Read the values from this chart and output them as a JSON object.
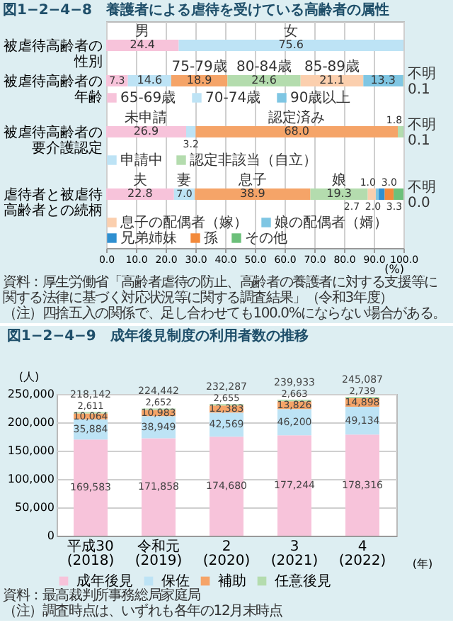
{
  "chart_data": [
    {
      "type": "bar",
      "orientation": "horizontal",
      "stacked": true,
      "title": "図1−2−4−8　養護者による虐待を受けている高齢者の属性",
      "xlabel": "(%)",
      "categories": [
        "被虐待高齢者の性別",
        "被虐待高齢者の年齢",
        "被虐待高齢者の要介護認定",
        "虐待者と被虐待高齢者との続柄"
      ],
      "xlim": [
        0,
        100
      ],
      "xticks": [
        {
          "value": 0,
          "label": "0.0"
        },
        {
          "value": 10,
          "label": "10.0"
        },
        {
          "value": 20,
          "label": "20.0"
        },
        {
          "value": 30,
          "label": "30.0"
        },
        {
          "value": 40,
          "label": "40.0"
        },
        {
          "value": 50,
          "label": "50.0"
        },
        {
          "value": 60,
          "label": "60.0"
        },
        {
          "value": 70,
          "label": "70.0"
        },
        {
          "value": 80,
          "label": "80.0"
        },
        {
          "value": 90,
          "label": "90.0"
        },
        {
          "value": 100,
          "label": "100.0"
        }
      ],
      "grid": "x",
      "legend": "left",
      "series": [
        {
          "name": "男",
          "color": "#f7c3da",
          "values": [
            24.4,
            null,
            null,
            null
          ],
          "value_labels": [
            "24.4",
            null,
            null,
            null
          ]
        },
        {
          "name": "女",
          "color": "#bde3f5",
          "values": [
            75.6,
            null,
            null,
            null
          ],
          "value_labels": [
            "75.6",
            null,
            null,
            null
          ]
        },
        {
          "name": "65-69歳",
          "color": "#f7c3da",
          "values": [
            null,
            7.3,
            null,
            null
          ],
          "value_labels": [
            null,
            "7.3",
            null,
            null
          ]
        },
        {
          "name": "70-74歳",
          "color": "#bde3f5",
          "values": [
            null,
            14.6,
            null,
            null
          ],
          "value_labels": [
            null,
            "14.6",
            null,
            null
          ]
        },
        {
          "name": "75-79歳",
          "color": "#f5a468",
          "values": [
            null,
            18.9,
            null,
            null
          ],
          "value_labels": [
            null,
            "18.9",
            null,
            null
          ]
        },
        {
          "name": "80-84歳",
          "color": "#b4dcae",
          "values": [
            null,
            24.6,
            null,
            null
          ],
          "value_labels": [
            null,
            "24.6",
            null,
            null
          ]
        },
        {
          "name": "85-89歳",
          "color": "#fbcfae",
          "values": [
            null,
            21.1,
            null,
            null
          ],
          "value_labels": [
            null,
            "21.1",
            null,
            null
          ]
        },
        {
          "name": "90歳以上",
          "color": "#7fc6e3",
          "values": [
            null,
            13.3,
            null,
            null
          ],
          "value_labels": [
            null,
            "13.3",
            null,
            null
          ]
        },
        {
          "name": "不明",
          "color": "#4fae6a",
          "values": [
            null,
            0.1,
            null,
            null
          ],
          "value_labels": [
            null,
            "0.1",
            null,
            null
          ]
        },
        {
          "name": "未申請",
          "color": "#f7c3da",
          "values": [
            null,
            null,
            26.9,
            null
          ],
          "value_labels": [
            null,
            null,
            "26.9",
            null
          ]
        },
        {
          "name": "申請中",
          "color": "#bde3f5",
          "values": [
            null,
            null,
            3.2,
            null
          ],
          "value_labels": [
            null,
            null,
            "3.2",
            null
          ]
        },
        {
          "name": "認定済み",
          "color": "#f5a468",
          "values": [
            null,
            null,
            68.0,
            null
          ],
          "value_labels": [
            null,
            null,
            "68.0",
            null
          ]
        },
        {
          "name": "認定非該当（自立）",
          "color": "#b4dcae",
          "values": [
            null,
            null,
            1.8,
            null
          ],
          "value_labels": [
            null,
            null,
            "1.8",
            null
          ]
        },
        {
          "name": "不明",
          "color": "#4fae6a",
          "values": [
            null,
            null,
            0.1,
            null
          ],
          "value_labels": [
            null,
            null,
            "0.1",
            null
          ]
        },
        {
          "name": "夫",
          "color": "#f7c3da",
          "values": [
            null,
            null,
            null,
            22.8
          ],
          "value_labels": [
            null,
            null,
            null,
            "22.8"
          ]
        },
        {
          "name": "妻",
          "color": "#bde3f5",
          "values": [
            null,
            null,
            null,
            7.0
          ],
          "value_labels": [
            null,
            null,
            null,
            "7.0"
          ]
        },
        {
          "name": "息子",
          "color": "#f5a468",
          "values": [
            null,
            null,
            null,
            38.9
          ],
          "value_labels": [
            null,
            null,
            null,
            "38.9"
          ]
        },
        {
          "name": "娘",
          "color": "#b4dcae",
          "values": [
            null,
            null,
            null,
            19.3
          ],
          "value_labels": [
            null,
            null,
            null,
            "19.3"
          ]
        },
        {
          "name": "息子の配偶者（嫁）",
          "color": "#fbcfae",
          "values": [
            null,
            null,
            null,
            2.7
          ],
          "value_labels": [
            null,
            null,
            null,
            "2.7"
          ]
        },
        {
          "name": "娘の配偶者（婿）",
          "color": "#7fc6e3",
          "values": [
            null,
            null,
            null,
            1.0
          ],
          "value_labels": [
            null,
            null,
            null,
            "1.0"
          ]
        },
        {
          "name": "兄弟姉妹",
          "color": "#2f8fd0",
          "values": [
            null,
            null,
            null,
            2.0
          ],
          "value_labels": [
            null,
            null,
            null,
            "2.0"
          ]
        },
        {
          "name": "孫",
          "color": "#f28a3c",
          "values": [
            null,
            null,
            null,
            3.0
          ],
          "value_labels": [
            null,
            null,
            null,
            "3.0"
          ]
        },
        {
          "name": "その他",
          "color": "#6cc07a",
          "values": [
            null,
            null,
            null,
            3.3
          ],
          "value_labels": [
            null,
            null,
            null,
            "3.3"
          ]
        },
        {
          "name": "不明",
          "values": [
            null,
            null,
            null,
            0.0
          ],
          "value_labels": [
            null,
            null,
            null,
            "0.0"
          ]
        }
      ],
      "annotations": [
        "資料：厚生労働省「高齢者虐待の防止、高齢者の養護者に対する支援等に関する法律に基づく対応状況等に関する調査結果」（令和3年度）",
        "（注）四捨五入の関係で、足し合わせても100.0%にならない場合がある。"
      ]
    },
    {
      "type": "bar",
      "stacked": true,
      "title": "図1−2−4−9　成年後見制度の利用者数の推移",
      "ylabel": "(人)",
      "xlabel": "(年)",
      "categories": [
        "平成30\n(2018)",
        "令和元\n(2019)",
        "2\n(2020)",
        "3\n(2021)",
        "4\n(2022)"
      ],
      "ylim": [
        0,
        250000
      ],
      "yticks": [
        0,
        {
          "value": 50000,
          "label": "50,000"
        },
        {
          "value": 100000,
          "label": "100,000"
        },
        {
          "value": 150000,
          "label": "150,000"
        },
        {
          "value": 200000,
          "label": "200,000"
        },
        {
          "value": 250000,
          "label": "250,000"
        }
      ],
      "grid": "y",
      "legend": "bottom",
      "totals": [
        "218,142",
        "224,442",
        "232,287",
        "239,933",
        "245,087"
      ],
      "series": [
        {
          "name": "成年後見",
          "color": "#f7c3da",
          "values": [
            169583,
            171858,
            174680,
            177244,
            178316
          ],
          "value_labels": [
            "169,583",
            "171,858",
            "174,680",
            "177,244",
            "178,316"
          ]
        },
        {
          "name": "保佐",
          "color": "#bde3f5",
          "values": [
            35884,
            38949,
            42569,
            46200,
            49134
          ],
          "value_labels": [
            "35,884",
            "38,949",
            "42,569",
            "46,200",
            "49,134"
          ]
        },
        {
          "name": "補助",
          "color": "#f5a468",
          "values": [
            10064,
            10983,
            12383,
            13826,
            14898
          ],
          "value_labels": [
            "10,064",
            "10,983",
            "12,383",
            "13,826",
            "14,898"
          ]
        },
        {
          "name": "任意後見",
          "color": "#b4dcae",
          "values": [
            2611,
            2652,
            2655,
            2663,
            2739
          ],
          "value_labels": [
            "2,611",
            "2,652",
            "2,655",
            "2,663",
            "2,739"
          ]
        }
      ],
      "annotations": [
        "資料：最高裁判所事務総局家庭局",
        "（注）調査時点は、いずれも各年の12月末時点"
      ]
    }
  ]
}
